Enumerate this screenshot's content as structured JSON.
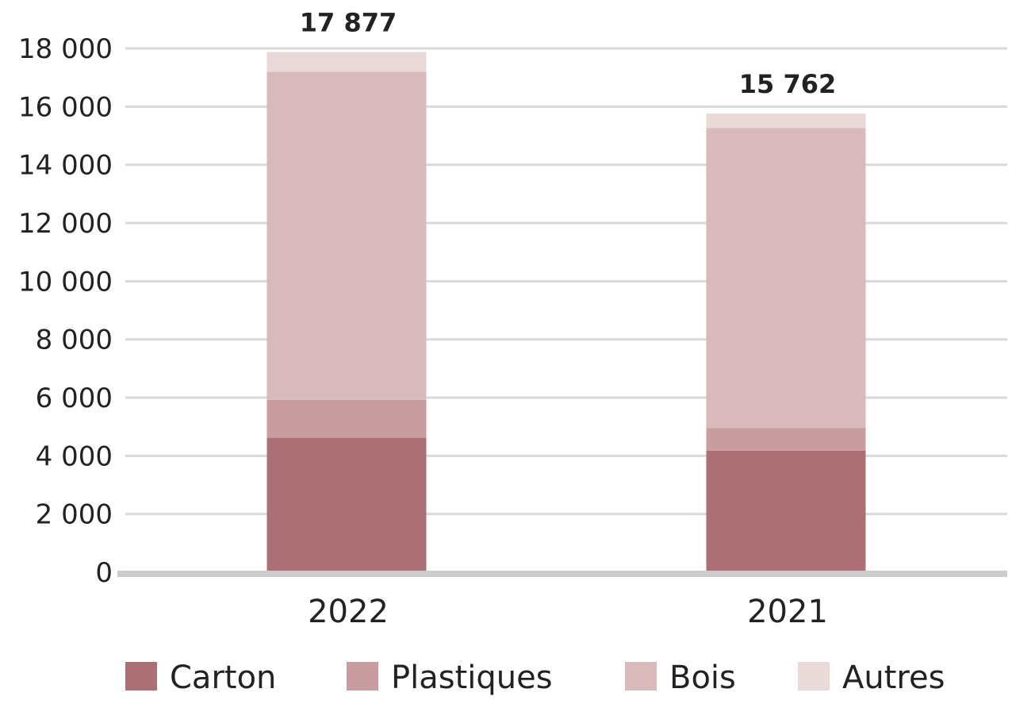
{
  "chart_data": {
    "type": "bar",
    "stacked": true,
    "categories": [
      "2022",
      "2021"
    ],
    "series": [
      {
        "name": "Carton",
        "color": "#ab7075",
        "values": [
          4620,
          4180
        ]
      },
      {
        "name": "Plastiques",
        "color": "#c99da0",
        "values": [
          1300,
          770
        ]
      },
      {
        "name": "Bois",
        "color": "#d8babd",
        "values": [
          11280,
          10310
        ]
      },
      {
        "name": "Autres",
        "color": "#e9d9d9",
        "values": [
          677,
          502
        ]
      }
    ],
    "totals": [
      17877,
      15762
    ],
    "total_labels": [
      "17 877",
      "15 762"
    ],
    "y_ticks": [
      0,
      2000,
      4000,
      6000,
      8000,
      10000,
      12000,
      14000,
      16000,
      18000
    ],
    "y_tick_labels": [
      "0",
      "2 000",
      "4 000",
      "6 000",
      "8 000",
      "10 000",
      "12 000",
      "14 000",
      "16 000",
      "18 000"
    ],
    "ylim": [
      0,
      18000
    ],
    "grid": true,
    "legend_position": "bottom",
    "title": "",
    "xlabel": "",
    "ylabel": ""
  }
}
